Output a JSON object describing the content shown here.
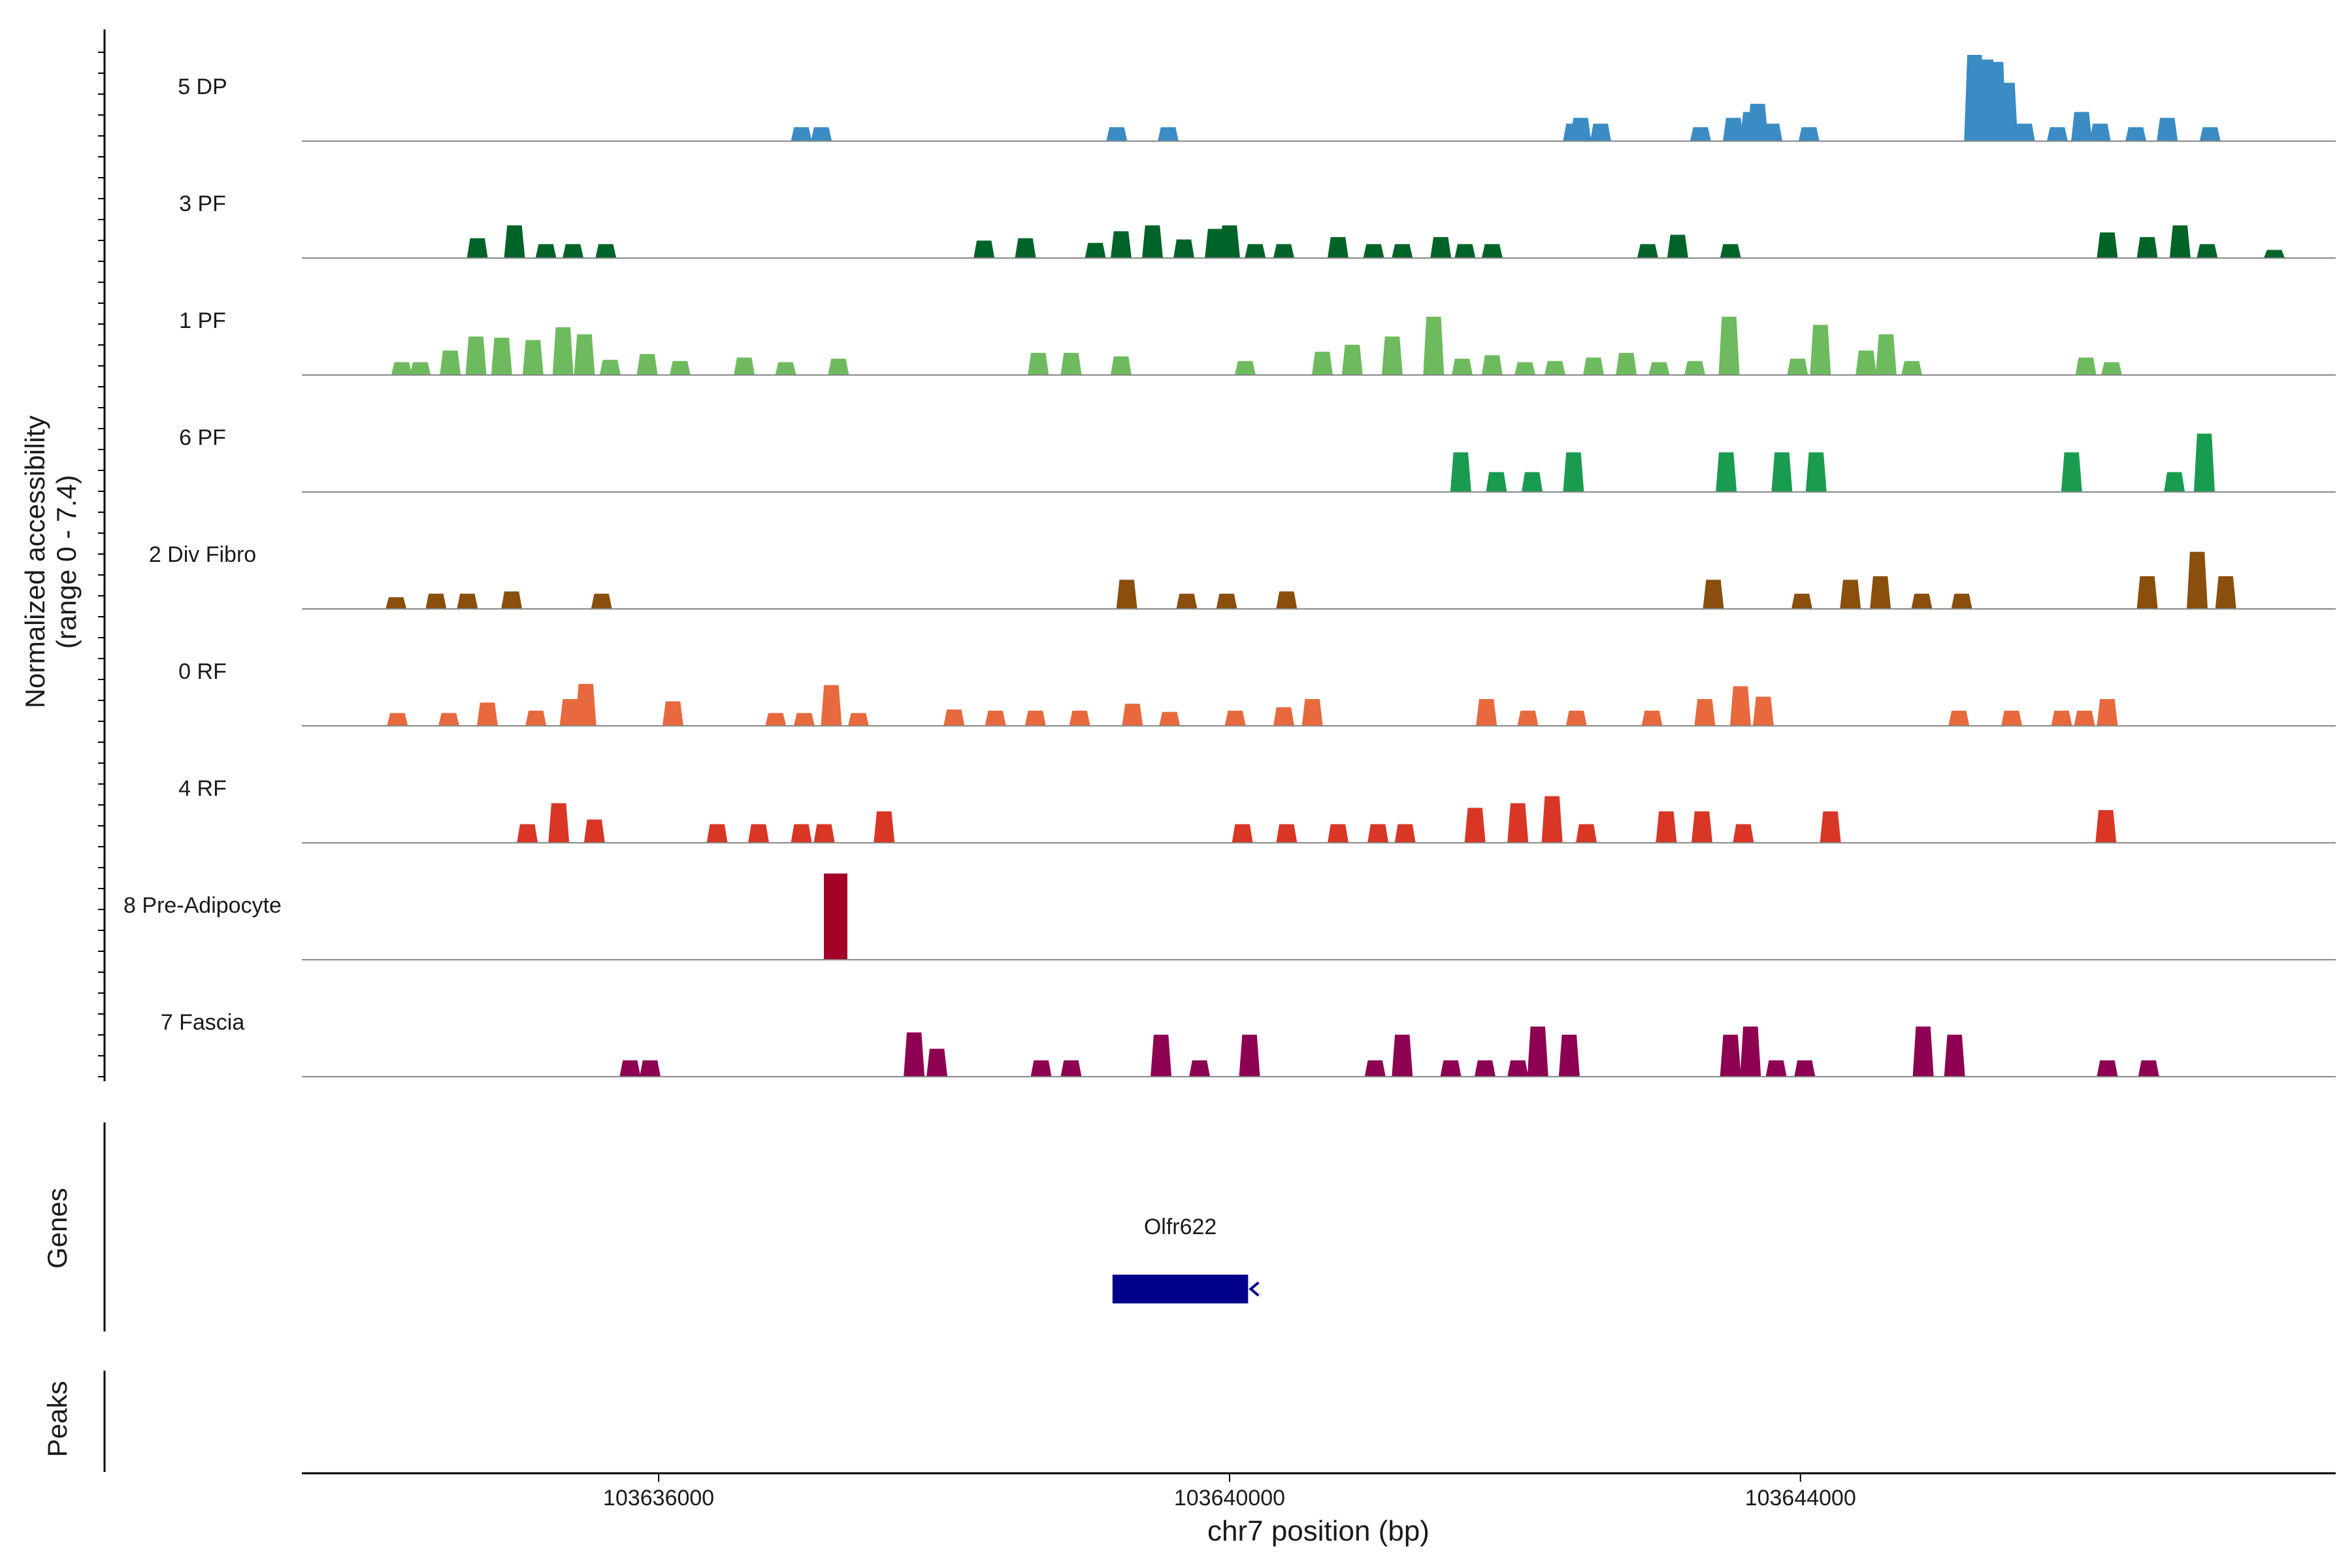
{
  "chart_data": {
    "type": "area",
    "title": "",
    "ylabel": "Normalized accessibility",
    "ylabel_range": "(range 0 - 7.4)",
    "xlabel": "chr7 position (bp)",
    "xlim": [
      103633500,
      103647750
    ],
    "ylim": [
      0,
      7.4
    ],
    "x_ticks": [
      103636000,
      103640000,
      103644000
    ],
    "x_tick_labels": [
      "103636000",
      "103640000",
      "103644000"
    ],
    "series": [
      {
        "name": "5 DP",
        "color": "#3B8BC4",
        "peaks": [
          [
            103637000,
            1.2
          ],
          [
            103637140,
            1.2
          ],
          [
            103639210,
            1.2
          ],
          [
            103639570,
            1.2
          ],
          [
            103642410,
            1.5
          ],
          [
            103642460,
            2.0
          ],
          [
            103642600,
            1.5
          ],
          [
            103643300,
            1.2
          ],
          [
            103643530,
            2.0
          ],
          [
            103643650,
            2.5
          ],
          [
            103643700,
            3.2
          ],
          [
            103643800,
            1.5
          ],
          [
            103644060,
            1.2
          ],
          [
            103645220,
            7.4
          ],
          [
            103645300,
            7.0
          ],
          [
            103645370,
            6.8
          ],
          [
            103645450,
            5.0
          ],
          [
            103645570,
            1.5
          ],
          [
            103645800,
            1.2
          ],
          [
            103645970,
            2.5
          ],
          [
            103646100,
            1.5
          ],
          [
            103646350,
            1.2
          ],
          [
            103646570,
            2.0
          ],
          [
            103646870,
            1.2
          ]
        ]
      },
      {
        "name": "3 PF",
        "color": "#006428",
        "peaks": [
          [
            103634730,
            1.7
          ],
          [
            103634990,
            2.8
          ],
          [
            103635210,
            1.2
          ],
          [
            103635400,
            1.2
          ],
          [
            103635630,
            1.2
          ],
          [
            103638280,
            1.5
          ],
          [
            103638570,
            1.7
          ],
          [
            103639060,
            1.3
          ],
          [
            103639240,
            2.3
          ],
          [
            103639460,
            2.8
          ],
          [
            103639680,
            1.6
          ],
          [
            103639900,
            2.5
          ],
          [
            103640000,
            2.8
          ],
          [
            103640180,
            1.2
          ],
          [
            103640380,
            1.2
          ],
          [
            103640760,
            1.8
          ],
          [
            103641010,
            1.2
          ],
          [
            103641210,
            1.2
          ],
          [
            103641480,
            1.8
          ],
          [
            103641650,
            1.2
          ],
          [
            103641840,
            1.2
          ],
          [
            103642930,
            1.2
          ],
          [
            103643140,
            2.0
          ],
          [
            103643510,
            1.2
          ],
          [
            103646150,
            2.2
          ],
          [
            103646430,
            1.8
          ],
          [
            103646660,
            2.8
          ],
          [
            103646850,
            1.2
          ],
          [
            103647320,
            0.7
          ]
        ]
      },
      {
        "name": "1 PF",
        "color": "#6DBB5E",
        "peaks": [
          [
            103634200,
            1.1
          ],
          [
            103634330,
            1.1
          ],
          [
            103634540,
            2.1
          ],
          [
            103634720,
            3.3
          ],
          [
            103634900,
            3.2
          ],
          [
            103635120,
            3.0
          ],
          [
            103635330,
            4.1
          ],
          [
            103635480,
            3.5
          ],
          [
            103635660,
            1.3
          ],
          [
            103635920,
            1.8
          ],
          [
            103636150,
            1.2
          ],
          [
            103636600,
            1.5
          ],
          [
            103636890,
            1.1
          ],
          [
            103637260,
            1.4
          ],
          [
            103638660,
            1.9
          ],
          [
            103638890,
            1.9
          ],
          [
            103639240,
            1.6
          ],
          [
            103640110,
            1.2
          ],
          [
            103640650,
            2.0
          ],
          [
            103640860,
            2.6
          ],
          [
            103641140,
            3.3
          ],
          [
            103641430,
            5.0
          ],
          [
            103641630,
            1.4
          ],
          [
            103641840,
            1.7
          ],
          [
            103642070,
            1.1
          ],
          [
            103642280,
            1.2
          ],
          [
            103642550,
            1.5
          ],
          [
            103642780,
            1.9
          ],
          [
            103643010,
            1.1
          ],
          [
            103643260,
            1.2
          ],
          [
            103643500,
            5.0
          ],
          [
            103643980,
            1.4
          ],
          [
            103644140,
            4.3
          ],
          [
            103644460,
            2.1
          ],
          [
            103644600,
            3.5
          ],
          [
            103644780,
            1.2
          ],
          [
            103646000,
            1.5
          ],
          [
            103646180,
            1.1
          ]
        ]
      },
      {
        "name": "6 PF",
        "color": "#199C50",
        "peaks": [
          [
            103641620,
            3.4
          ],
          [
            103641870,
            1.7
          ],
          [
            103642120,
            1.7
          ],
          [
            103642410,
            3.4
          ],
          [
            103643480,
            3.4
          ],
          [
            103643870,
            3.4
          ],
          [
            103644110,
            3.4
          ],
          [
            103645900,
            3.4
          ],
          [
            103646620,
            1.7
          ],
          [
            103646830,
            5.0
          ]
        ]
      },
      {
        "name": "2 Div Fibro",
        "color": "#8A4F0D",
        "peaks": [
          [
            103634160,
            1.0
          ],
          [
            103634440,
            1.3
          ],
          [
            103634660,
            1.3
          ],
          [
            103634970,
            1.5
          ],
          [
            103635600,
            1.3
          ],
          [
            103639280,
            2.5
          ],
          [
            103639700,
            1.3
          ],
          [
            103639980,
            1.3
          ],
          [
            103640400,
            1.5
          ],
          [
            103643390,
            2.5
          ],
          [
            103644010,
            1.3
          ],
          [
            103644350,
            2.5
          ],
          [
            103644560,
            2.8
          ],
          [
            103644850,
            1.3
          ],
          [
            103645130,
            1.3
          ],
          [
            103646430,
            2.8
          ],
          [
            103646780,
            4.9
          ],
          [
            103646980,
            2.8
          ]
        ]
      },
      {
        "name": "0 RF",
        "color": "#E8693E",
        "peaks": [
          [
            103634170,
            1.1
          ],
          [
            103634530,
            1.1
          ],
          [
            103634800,
            2.0
          ],
          [
            103635140,
            1.3
          ],
          [
            103635380,
            2.3
          ],
          [
            103635490,
            3.6
          ],
          [
            103636100,
            2.1
          ],
          [
            103636820,
            1.1
          ],
          [
            103637020,
            1.1
          ],
          [
            103637210,
            3.5
          ],
          [
            103637400,
            1.1
          ],
          [
            103638070,
            1.4
          ],
          [
            103638360,
            1.3
          ],
          [
            103638640,
            1.3
          ],
          [
            103638950,
            1.3
          ],
          [
            103639320,
            1.9
          ],
          [
            103639580,
            1.2
          ],
          [
            103640040,
            1.3
          ],
          [
            103640380,
            1.6
          ],
          [
            103640580,
            2.3
          ],
          [
            103641800,
            2.3
          ],
          [
            103642090,
            1.3
          ],
          [
            103642430,
            1.3
          ],
          [
            103642960,
            1.3
          ],
          [
            103643330,
            2.3
          ],
          [
            103643580,
            3.4
          ],
          [
            103643740,
            2.5
          ],
          [
            103645110,
            1.3
          ],
          [
            103645480,
            1.3
          ],
          [
            103645830,
            1.3
          ],
          [
            103645990,
            1.3
          ],
          [
            103646150,
            2.3
          ]
        ]
      },
      {
        "name": "4 RF",
        "color": "#D93626",
        "peaks": [
          [
            103635080,
            1.6
          ],
          [
            103635300,
            3.4
          ],
          [
            103635550,
            2.0
          ],
          [
            103636410,
            1.6
          ],
          [
            103636700,
            1.6
          ],
          [
            103637000,
            1.6
          ],
          [
            103637160,
            1.6
          ],
          [
            103637580,
            2.7
          ],
          [
            103640090,
            1.6
          ],
          [
            103640400,
            1.6
          ],
          [
            103640760,
            1.6
          ],
          [
            103641040,
            1.6
          ],
          [
            103641230,
            1.6
          ],
          [
            103641720,
            3.0
          ],
          [
            103642020,
            3.4
          ],
          [
            103642260,
            4.0
          ],
          [
            103642500,
            1.6
          ],
          [
            103643060,
            2.7
          ],
          [
            103643310,
            2.7
          ],
          [
            103643600,
            1.6
          ],
          [
            103644210,
            2.7
          ],
          [
            103646140,
            2.8
          ]
        ]
      },
      {
        "name": "8 Pre-Adipocyte",
        "color": "#A50026",
        "peaks": [
          [
            103637240,
            7.4
          ]
        ]
      },
      {
        "name": "7 Fascia",
        "color": "#8E0152",
        "peaks": [
          [
            103635800,
            1.4
          ],
          [
            103635940,
            1.4
          ],
          [
            103637790,
            3.8
          ],
          [
            103637950,
            2.4
          ],
          [
            103638680,
            1.4
          ],
          [
            103638890,
            1.4
          ],
          [
            103639520,
            3.6
          ],
          [
            103639790,
            1.4
          ],
          [
            103640140,
            3.6
          ],
          [
            103641020,
            1.4
          ],
          [
            103641210,
            3.6
          ],
          [
            103641550,
            1.4
          ],
          [
            103641790,
            1.4
          ],
          [
            103642020,
            1.4
          ],
          [
            103642160,
            4.3
          ],
          [
            103642380,
            3.6
          ],
          [
            103643510,
            3.6
          ],
          [
            103643650,
            4.3
          ],
          [
            103643830,
            1.4
          ],
          [
            103644030,
            1.4
          ],
          [
            103644860,
            4.3
          ],
          [
            103645080,
            3.6
          ],
          [
            103646150,
            1.4
          ],
          [
            103646440,
            1.4
          ]
        ]
      }
    ],
    "gene_track": {
      "label": "Genes",
      "genes": [
        {
          "name": "Olfr622",
          "start": 103639180,
          "end": 103640130,
          "strand": "-"
        }
      ]
    },
    "peak_track": {
      "label": "Peaks",
      "peaks": []
    }
  }
}
